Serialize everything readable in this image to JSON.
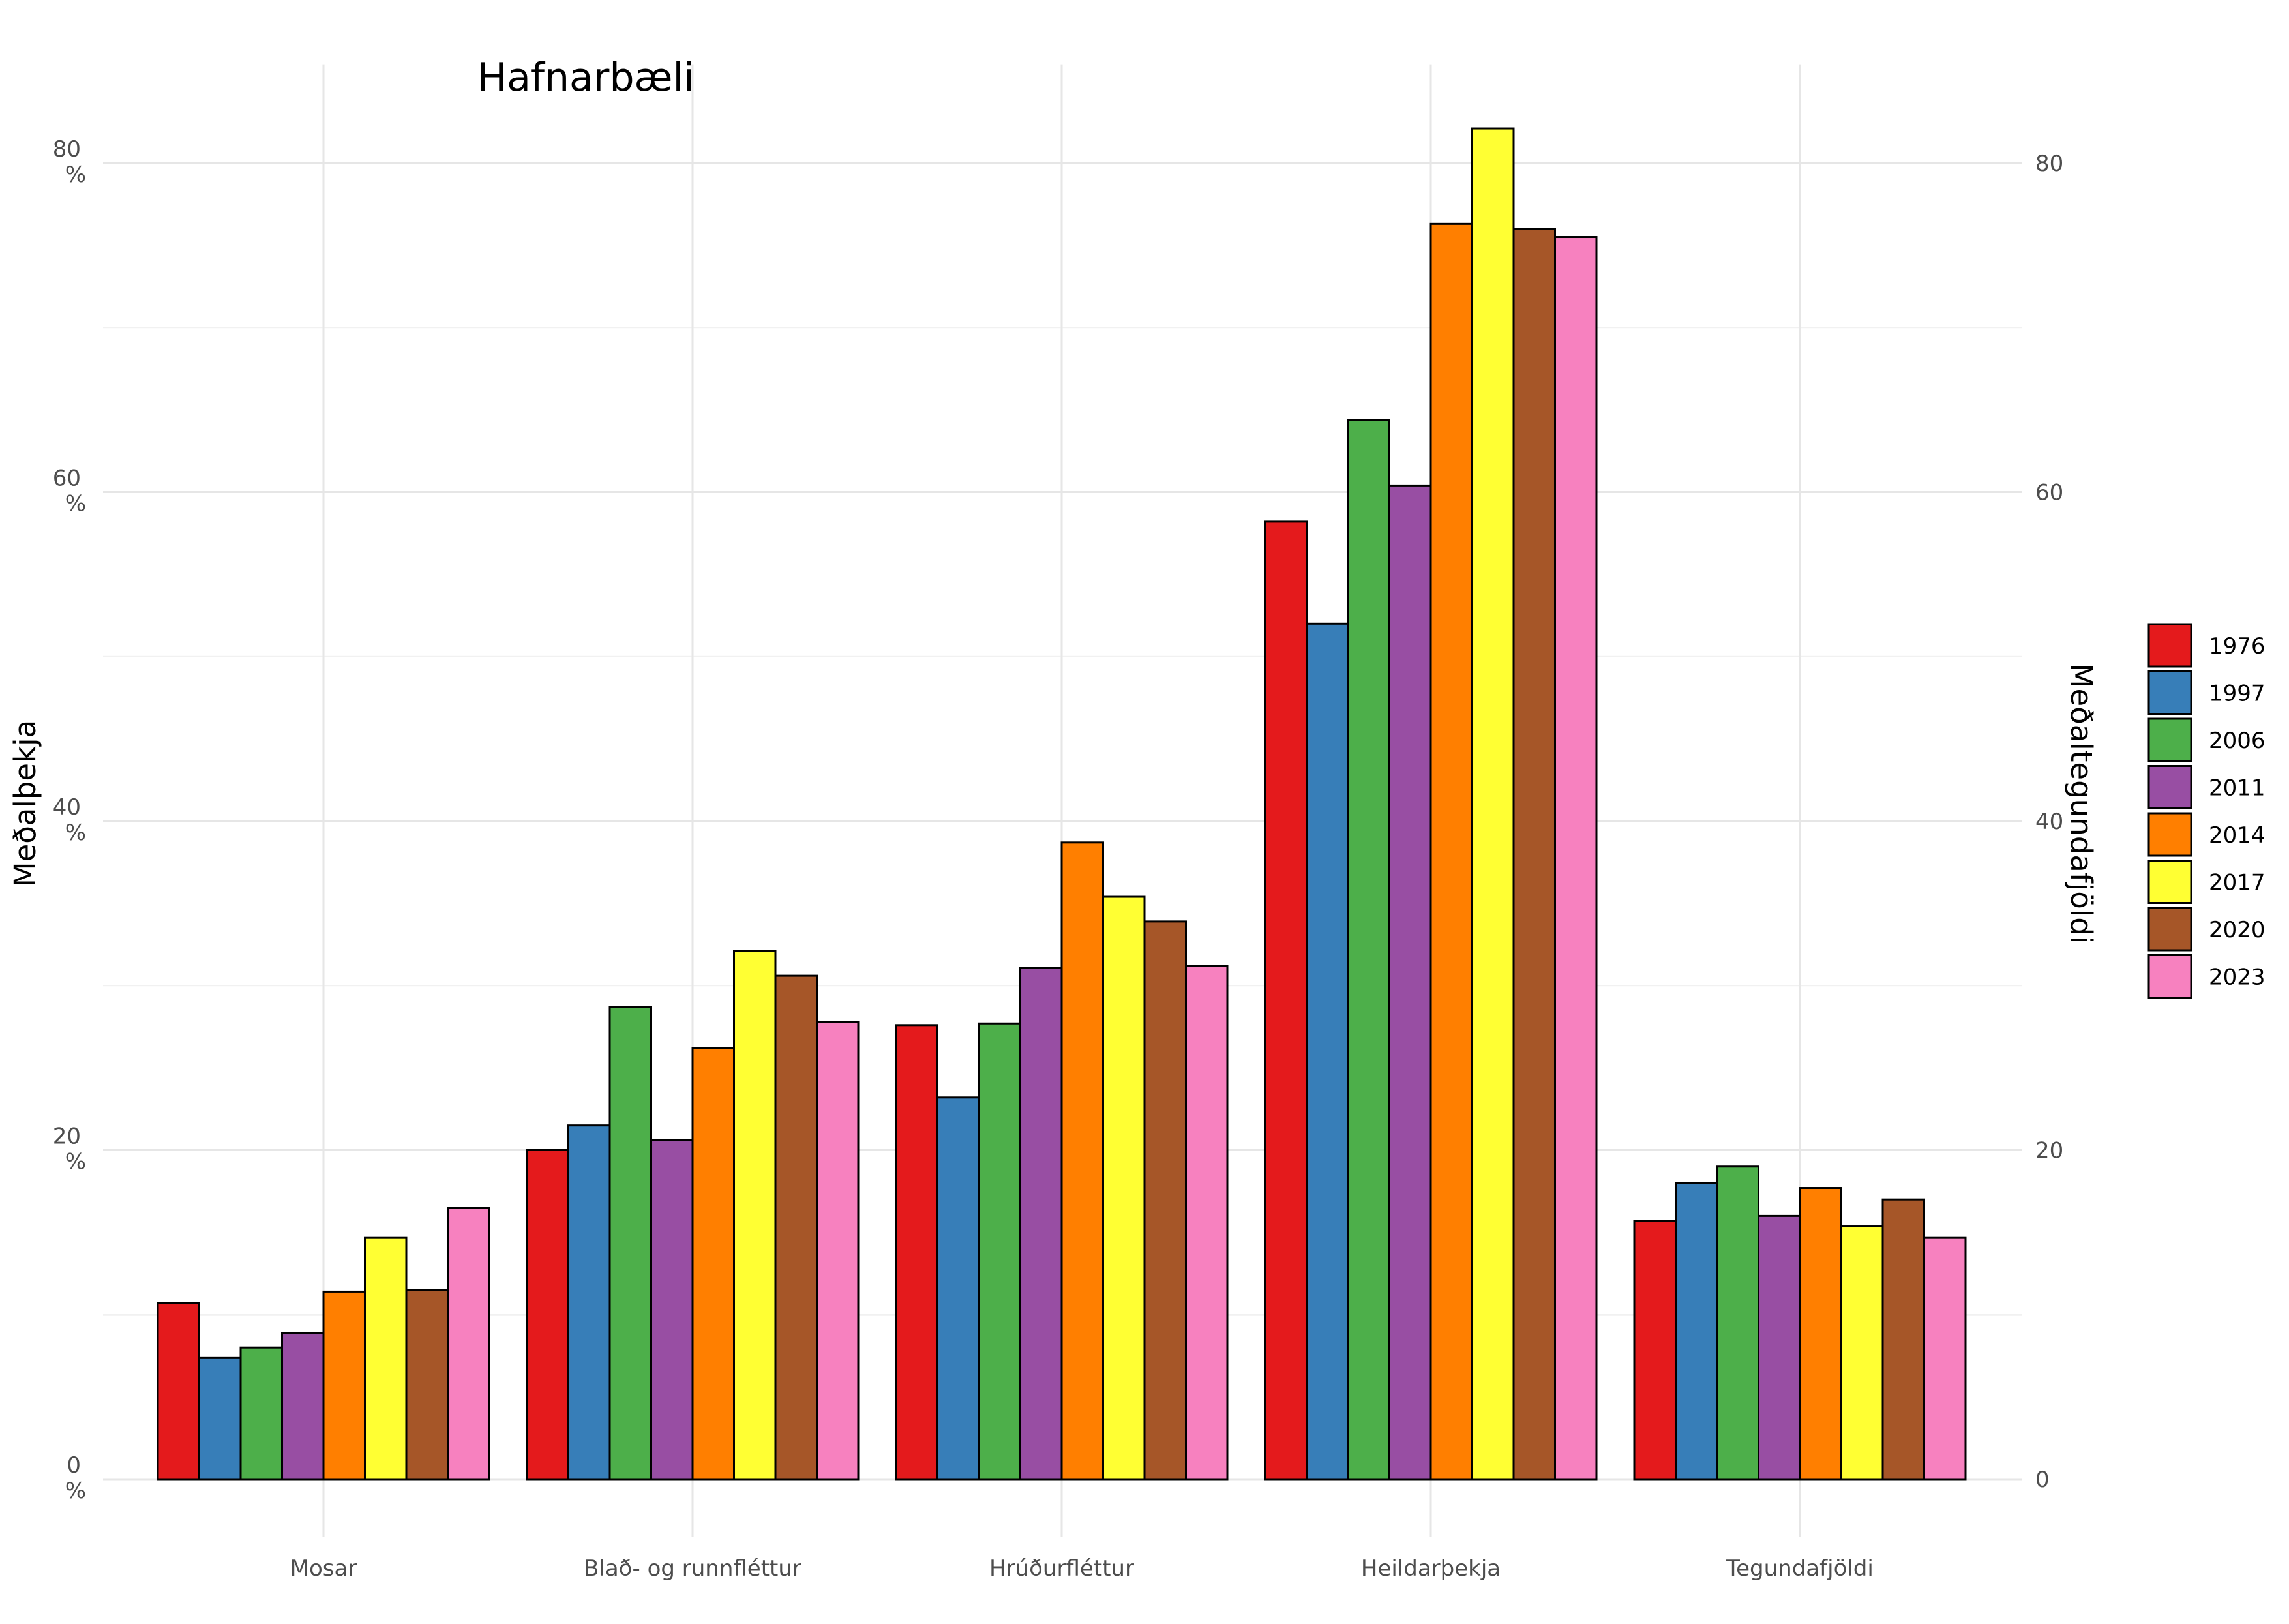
{
  "chart_data": {
    "type": "bar",
    "title": "Hafnarbæli",
    "categories": [
      "Mosar",
      "Blað- og runnfléttur",
      "Hrúðurfléttur",
      "Heildarþekja",
      "Tegundafjöldi"
    ],
    "series": [
      {
        "name": "1976",
        "color": "#E41A1C",
        "values": [
          10.7,
          20.0,
          27.6,
          58.2,
          15.7
        ]
      },
      {
        "name": "1997",
        "color": "#377EB8",
        "values": [
          7.4,
          21.5,
          23.2,
          52.0,
          18.0
        ]
      },
      {
        "name": "2006",
        "color": "#4DAF4A",
        "values": [
          8.0,
          28.7,
          27.7,
          64.4,
          19.0
        ]
      },
      {
        "name": "2011",
        "color": "#984EA3",
        "values": [
          8.9,
          20.6,
          31.1,
          60.4,
          16.0
        ]
      },
      {
        "name": "2014",
        "color": "#FF7F00",
        "values": [
          11.4,
          26.2,
          38.7,
          76.3,
          17.7
        ]
      },
      {
        "name": "2017",
        "color": "#FFFF33",
        "values": [
          14.7,
          32.1,
          35.4,
          82.1,
          15.4
        ]
      },
      {
        "name": "2020",
        "color": "#A65628",
        "values": [
          11.5,
          30.6,
          33.9,
          76.0,
          17.0
        ]
      },
      {
        "name": "2023",
        "color": "#F781BF",
        "values": [
          16.5,
          27.8,
          31.2,
          75.5,
          14.7
        ]
      }
    ],
    "ylabel": "Meðalþekja",
    "y2label": "Meðaltegundafjöldi",
    "ylim": [
      -3.5,
      86
    ],
    "yticks_left": [
      {
        "value": 0,
        "line1": "0",
        "line2": "%"
      },
      {
        "value": 20,
        "line1": "20",
        "line2": "%"
      },
      {
        "value": 40,
        "line1": "40",
        "line2": "%"
      },
      {
        "value": 60,
        "line1": "60",
        "line2": "%"
      },
      {
        "value": 80,
        "line1": "80",
        "line2": "%"
      }
    ],
    "yticks_right": [
      0,
      20,
      40,
      60,
      80
    ],
    "minor_grid": [
      10,
      30,
      50,
      70
    ],
    "grid": true,
    "legend_position": "right"
  }
}
